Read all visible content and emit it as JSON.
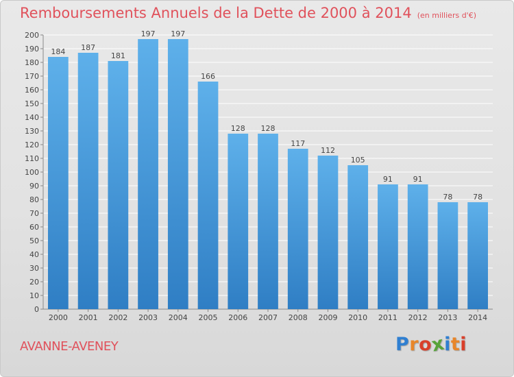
{
  "title": "Remboursements Annuels de la Dette de 2000 à 2014",
  "subtitle": "(en milliers d'€)",
  "commune": "AVANNE-AVENEY",
  "logo": {
    "text": "Proxiti",
    "letter_colors": [
      "#2f7fd1",
      "#e8862a",
      "#d93f2a",
      "#57a33a",
      "#2f7fd1",
      "#e8862a",
      "#d93f2a"
    ]
  },
  "colors": {
    "bar_top": "#5eb0ea",
    "bar_bottom": "#2f7ec4",
    "title": "#e0515b",
    "grid": "#ffffff"
  },
  "chart_data": {
    "type": "bar",
    "categories": [
      "2000",
      "2001",
      "2002",
      "2003",
      "2004",
      "2005",
      "2006",
      "2007",
      "2008",
      "2009",
      "2010",
      "2011",
      "2012",
      "2013",
      "2014"
    ],
    "values": [
      184,
      187,
      181,
      197,
      197,
      166,
      128,
      128,
      117,
      112,
      105,
      91,
      91,
      78,
      78
    ],
    "title": "Remboursements Annuels de la Dette de 2000 à 2014",
    "xlabel": "",
    "ylabel": "",
    "ylim": [
      0,
      200
    ],
    "yticks": [
      0,
      10,
      20,
      30,
      40,
      50,
      60,
      70,
      80,
      90,
      100,
      110,
      120,
      130,
      140,
      150,
      160,
      170,
      180,
      190,
      200
    ],
    "grid": true,
    "legend": "none",
    "data_labels": true
  }
}
